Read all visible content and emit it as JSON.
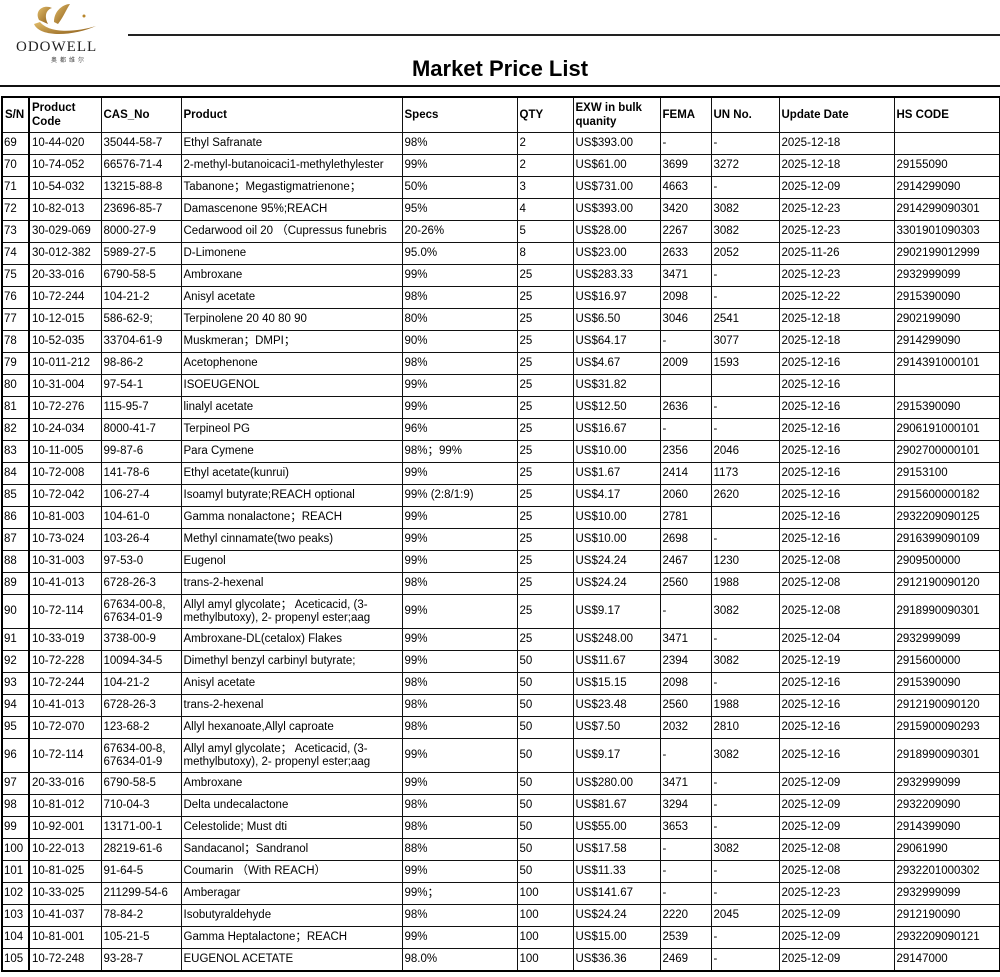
{
  "logo": {
    "brand": "ODOWELL",
    "subtitle": "奥都维尔"
  },
  "title": "Market Price List",
  "table": {
    "columns": [
      "S/N",
      "Product Code",
      "CAS_No",
      "Product",
      "Specs",
      "QTY",
      "EXW in bulk quanity",
      "FEMA",
      "UN No.",
      "Update Date",
      "HS CODE"
    ],
    "rows": [
      [
        "69",
        "10-44-020",
        "35044-58-7",
        "Ethyl Safranate",
        "98%",
        "2",
        "US$393.00",
        "-",
        "-",
        "2025-12-18",
        ""
      ],
      [
        "70",
        "10-74-052",
        "66576-71-4",
        "2-methyl-butanoicaci1-methylethylester",
        "99%",
        "2",
        "US$61.00",
        "3699",
        "3272",
        "2025-12-18",
        "29155090"
      ],
      [
        "71",
        "10-54-032",
        "13215-88-8",
        "Tabanone；Megastigmatrienone；",
        "50%",
        "3",
        "US$731.00",
        "4663",
        "-",
        "2025-12-09",
        "2914299090"
      ],
      [
        "72",
        "10-82-013",
        "23696-85-7",
        "Damascenone 95%;REACH",
        "95%",
        "4",
        "US$393.00",
        "3420",
        "3082",
        "2025-12-23",
        " 2914299090301"
      ],
      [
        "73",
        "30-029-069",
        "8000-27-9",
        "Cedarwood oil 20 （Cupressus funebris",
        "20-26%",
        "5",
        "US$28.00",
        "2267",
        "3082",
        "2025-12-23",
        "3301901090303"
      ],
      [
        "74",
        "30-012-382",
        "5989-27-5",
        "D-Limonene",
        "95.0%",
        "8",
        "US$23.00",
        "2633",
        "2052",
        "2025-11-26",
        " 2902199012999"
      ],
      [
        "75",
        "20-33-016",
        "6790-58-5",
        "Ambroxane",
        "99%",
        "25",
        "US$283.33",
        "3471",
        "-",
        "2025-12-23",
        "2932999099"
      ],
      [
        "76",
        "10-72-244",
        "104-21-2",
        "Anisyl acetate",
        "98%",
        "25",
        "US$16.97",
        "2098",
        "-",
        "2025-12-22",
        "2915390090"
      ],
      [
        "77",
        "10-12-015",
        "586-62-9;",
        "Terpinolene 20 40 80 90",
        "80%",
        "25",
        "US$6.50",
        "3046",
        "2541",
        "2025-12-18",
        "2902199090"
      ],
      [
        "78",
        "10-52-035",
        "33704-61-9",
        "Muskmeran；DMPI；",
        "90%",
        "25",
        "US$64.17",
        "-",
        "3077",
        "2025-12-18",
        "2914299090"
      ],
      [
        "79",
        "10-011-212",
        "98-86-2",
        "Acetophenone",
        "98%",
        "25",
        "US$4.67",
        "2009",
        "1593",
        "2025-12-16",
        "2914391000101"
      ],
      [
        "80",
        "10-31-004",
        "97-54-1",
        "ISOEUGENOL",
        "99%",
        "25",
        "US$31.82",
        "",
        "",
        "2025-12-16",
        ""
      ],
      [
        "81",
        "10-72-276",
        "115-95-7",
        "linalyl acetate",
        "99%",
        "25",
        "US$12.50",
        "2636",
        "-",
        "2025-12-16",
        "2915390090"
      ],
      [
        "82",
        "10-24-034",
        "8000-41-7",
        "Terpineol PG",
        "96%",
        "25",
        "US$16.67",
        "-",
        "-",
        "2025-12-16",
        "2906191000101"
      ],
      [
        "83",
        "10-11-005",
        "99-87-6",
        "Para Cymene",
        "98%；99%",
        "25",
        "US$10.00",
        "2356",
        "2046",
        "2025-12-16",
        "2902700000101"
      ],
      [
        "84",
        "10-72-008",
        "141-78-6",
        "Ethyl acetate(kunrui)",
        "99%",
        "25",
        "US$1.67",
        "2414",
        "1173",
        "2025-12-16",
        "29153100"
      ],
      [
        "85",
        "10-72-042",
        "106-27-4",
        "Isoamyl butyrate;REACH optional",
        "99% (2:8/1:9)",
        "25",
        "US$4.17",
        "2060",
        "2620",
        "2025-12-16",
        "2915600000182"
      ],
      [
        "86",
        "10-81-003",
        "104-61-0",
        "Gamma nonalactone；REACH",
        "99%",
        "25",
        "US$10.00",
        "2781",
        "",
        "2025-12-16",
        "2932209090125"
      ],
      [
        "87",
        "10-73-024",
        "103-26-4",
        "Methyl cinnamate(two peaks)",
        "99%",
        "25",
        "US$10.00",
        "2698",
        "-",
        "2025-12-16",
        "2916399090109"
      ],
      [
        "88",
        "10-31-003",
        "97-53-0",
        "Eugenol",
        "99%",
        "25",
        "US$24.24",
        "2467",
        "1230",
        "2025-12-08",
        "2909500000"
      ],
      [
        "89",
        "10-41-013",
        "6728-26-3",
        "trans-2-hexenal",
        "98%",
        "25",
        "US$24.24",
        "2560",
        "1988",
        "2025-12-08",
        "2912190090120"
      ],
      [
        "90",
        "10-72-114",
        "67634-00-8, 67634-01-9",
        "Allyl amyl glycolate； Aceticacid, (3-methylbutoxy), 2- propenyl ester;aag",
        "99%",
        "25",
        "US$9.17",
        "-",
        "3082",
        "2025-12-08",
        "2918990090301"
      ],
      [
        "91",
        "10-33-019",
        "3738-00-9",
        "Ambroxane-DL(cetalox) Flakes",
        "99%",
        "25",
        "US$248.00",
        "3471",
        "-",
        "2025-12-04",
        "2932999099"
      ],
      [
        "92",
        "10-72-228",
        "10094-34-5",
        "Dimethyl benzyl carbinyl butyrate;",
        "99%",
        "50",
        "US$11.67",
        "2394",
        "3082",
        "2025-12-19",
        "2915600000"
      ],
      [
        "93",
        "10-72-244",
        "104-21-2",
        "Anisyl acetate",
        "98%",
        "50",
        "US$15.15",
        "2098",
        "-",
        "2025-12-16",
        "2915390090"
      ],
      [
        "94",
        "10-41-013",
        "6728-26-3",
        "trans-2-hexenal",
        "98%",
        "50",
        "US$23.48",
        "2560",
        "1988",
        "2025-12-16",
        "2912190090120"
      ],
      [
        "95",
        "10-72-070",
        "123-68-2",
        "Allyl hexanoate,Allyl caproate",
        "98%",
        "50",
        "US$7.50",
        "2032",
        "2810",
        "2025-12-16",
        "2915900090293"
      ],
      [
        "96",
        "10-72-114",
        "67634-00-8, 67634-01-9",
        "Allyl amyl glycolate； Aceticacid, (3-methylbutoxy), 2- propenyl ester;aag",
        "99%",
        "50",
        "US$9.17",
        "-",
        "3082",
        "2025-12-16",
        "2918990090301"
      ],
      [
        "97",
        "20-33-016",
        "6790-58-5",
        "Ambroxane",
        "99%",
        "50",
        "US$280.00",
        "3471",
        "-",
        "2025-12-09",
        "2932999099"
      ],
      [
        "98",
        "10-81-012",
        "710-04-3",
        "Delta undecalactone",
        "98%",
        "50",
        "US$81.67",
        "3294",
        "-",
        "2025-12-09",
        "2932209090"
      ],
      [
        "99",
        "10-92-001",
        "13171-00-1",
        "Celestolide; Must dti",
        "98%",
        "50",
        "US$55.00",
        "3653",
        "-",
        "2025-12-09",
        "2914399090"
      ],
      [
        "100",
        "10-22-013",
        "28219-61-6",
        "Sandacanol；Sandranol",
        "88%",
        "50",
        "US$17.58",
        "-",
        "3082",
        "2025-12-08",
        "29061990"
      ],
      [
        "101",
        "10-81-025",
        "91-64-5",
        "Coumarin （With REACH）",
        "99%",
        "50",
        "US$11.33",
        "-",
        "-",
        "2025-12-08",
        "2932201000302"
      ],
      [
        "102",
        "10-33-025",
        "211299-54-6",
        "Amberagar",
        "99%；",
        "100",
        "US$141.67",
        "-",
        "-",
        "2025-12-23",
        "2932999099"
      ],
      [
        "103",
        "10-41-037",
        "78-84-2",
        "Isobutyraldehyde",
        "98%",
        "100",
        "US$24.24",
        "2220",
        "2045",
        "2025-12-09",
        "2912190090"
      ],
      [
        "104",
        "10-81-001",
        "105-21-5",
        "Gamma Heptalactone；REACH",
        "99%",
        "100",
        "US$15.00",
        "2539",
        "-",
        "2025-12-09",
        "2932209090121"
      ],
      [
        "105",
        "10-72-248",
        "93-28-7",
        "EUGENOL ACETATE",
        "98.0%",
        "100",
        "US$36.36",
        "2469",
        "-",
        "2025-12-09",
        "29147000"
      ]
    ]
  },
  "colors": {
    "logo_gold": "#b8862b",
    "border": "#000000"
  }
}
